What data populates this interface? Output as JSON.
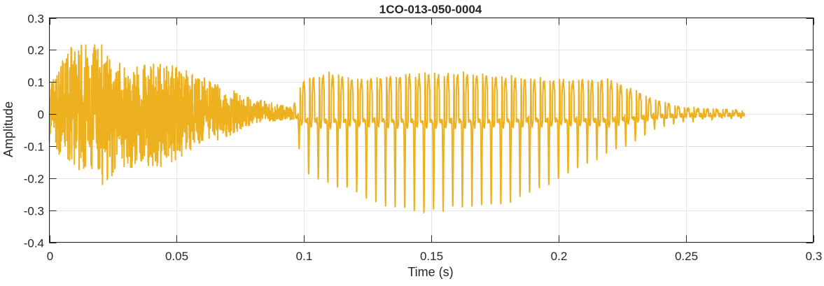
{
  "chart_data": {
    "type": "line",
    "title": "1CO-013-050-0004",
    "xlabel": "Time (s)",
    "ylabel": "Amplitude",
    "xlim": [
      0,
      0.3
    ],
    "ylim": [
      -0.4,
      0.3
    ],
    "xticks": [
      0,
      0.05,
      0.1,
      0.15,
      0.2,
      0.25,
      0.3
    ],
    "xtick_labels": [
      "0",
      "0.05",
      "0.1",
      "0.15",
      "0.2",
      "0.25",
      "0.3"
    ],
    "yticks": [
      -0.4,
      -0.3,
      -0.2,
      -0.1,
      0,
      0.1,
      0.2,
      0.3
    ],
    "ytick_labels": [
      "-0.4",
      "-0.3",
      "-0.2",
      "-0.1",
      "0",
      "0.1",
      "0.2",
      "0.3"
    ],
    "grid": true,
    "series": [
      {
        "name": "waveform",
        "color": "#EDB120",
        "signal_end_s": 0.273,
        "segments": [
          {
            "kind": "noise",
            "t_range": [
              0,
              0.096
            ],
            "envelope_t": [
              0,
              0.01,
              0.02,
              0.03,
              0.045,
              0.05,
              0.06,
              0.07,
              0.08,
              0.09,
              0.096
            ],
            "envelope_max": [
              0.1,
              0.23,
              0.22,
              0.15,
              0.16,
              0.15,
              0.12,
              0.08,
              0.05,
              0.03,
              0.02
            ],
            "envelope_min": [
              -0.1,
              -0.18,
              -0.23,
              -0.17,
              -0.17,
              -0.15,
              -0.1,
              -0.07,
              -0.03,
              -0.02,
              -0.02
            ]
          },
          {
            "kind": "voiced",
            "t_range": [
              0.096,
              0.273
            ],
            "f0_hz": 265,
            "envelope_t": [
              0.096,
              0.1,
              0.11,
              0.12,
              0.13,
              0.145,
              0.16,
              0.18,
              0.19,
              0.2,
              0.21,
              0.22,
              0.23,
              0.24,
              0.25,
              0.273
            ],
            "envelope_max": [
              0.03,
              0.12,
              0.14,
              0.12,
              0.13,
              0.14,
              0.14,
              0.13,
              0.12,
              0.12,
              0.12,
              0.12,
              0.08,
              0.04,
              0.02,
              0.01
            ],
            "envelope_min": [
              -0.03,
              -0.18,
              -0.22,
              -0.24,
              -0.28,
              -0.31,
              -0.29,
              -0.28,
              -0.24,
              -0.2,
              -0.16,
              -0.12,
              -0.08,
              -0.04,
              -0.02,
              -0.01
            ]
          }
        ]
      }
    ]
  }
}
